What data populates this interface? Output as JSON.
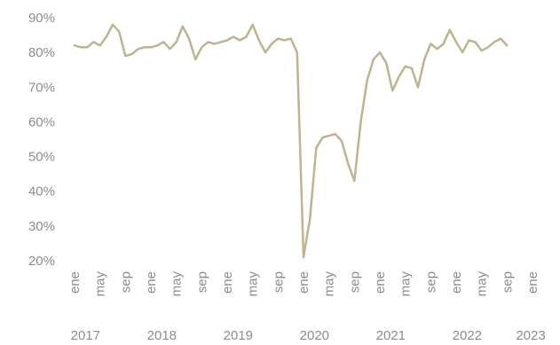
{
  "colors": {
    "line": "#bfb48e",
    "text": "#8c8c8c"
  },
  "chart_data": {
    "type": "line",
    "title": "",
    "xlabel": "",
    "ylabel": "",
    "ylim": [
      20,
      90
    ],
    "y_ticks": [
      "20%",
      "30%",
      "40%",
      "50%",
      "60%",
      "70%",
      "80%",
      "90%"
    ],
    "x_ticks": [
      "ene",
      "may",
      "sep",
      "ene",
      "may",
      "sep",
      "ene",
      "may",
      "sep",
      "ene",
      "may",
      "sep",
      "ene",
      "may",
      "sep",
      "ene",
      "may",
      "sep",
      "ene"
    ],
    "x_tick_months": [
      0,
      4,
      8,
      12,
      16,
      20,
      24,
      28,
      32,
      36,
      40,
      44,
      48,
      52,
      56,
      60,
      64,
      68,
      72
    ],
    "year_labels": [
      "2017",
      "2018",
      "2019",
      "2020",
      "2021",
      "2022",
      "2023"
    ],
    "year_label_months": [
      2,
      14,
      26,
      38,
      50,
      62,
      72
    ],
    "grid": false,
    "legend": "none",
    "x_start": "2017-01",
    "series": [
      {
        "values": [
          82,
          81.5,
          81.5,
          83,
          82,
          84.5,
          88,
          86,
          79,
          79.5,
          81,
          81.5,
          81.5,
          82,
          83,
          81,
          83,
          87.5,
          84,
          78,
          81.5,
          83,
          82.5,
          83,
          83.5,
          84.5,
          83.5,
          84.5,
          88,
          83.5,
          80,
          82.5,
          84,
          83.5,
          84,
          80,
          21,
          32,
          52.5,
          55.5,
          56,
          56.5,
          54.5,
          48,
          43,
          60,
          72,
          78,
          80,
          77,
          69,
          73,
          76,
          75.5,
          70,
          78,
          82.5,
          81,
          82.5,
          86.5,
          83,
          80,
          83.5,
          83,
          80.5,
          81.5,
          83,
          84,
          82
        ]
      }
    ]
  }
}
